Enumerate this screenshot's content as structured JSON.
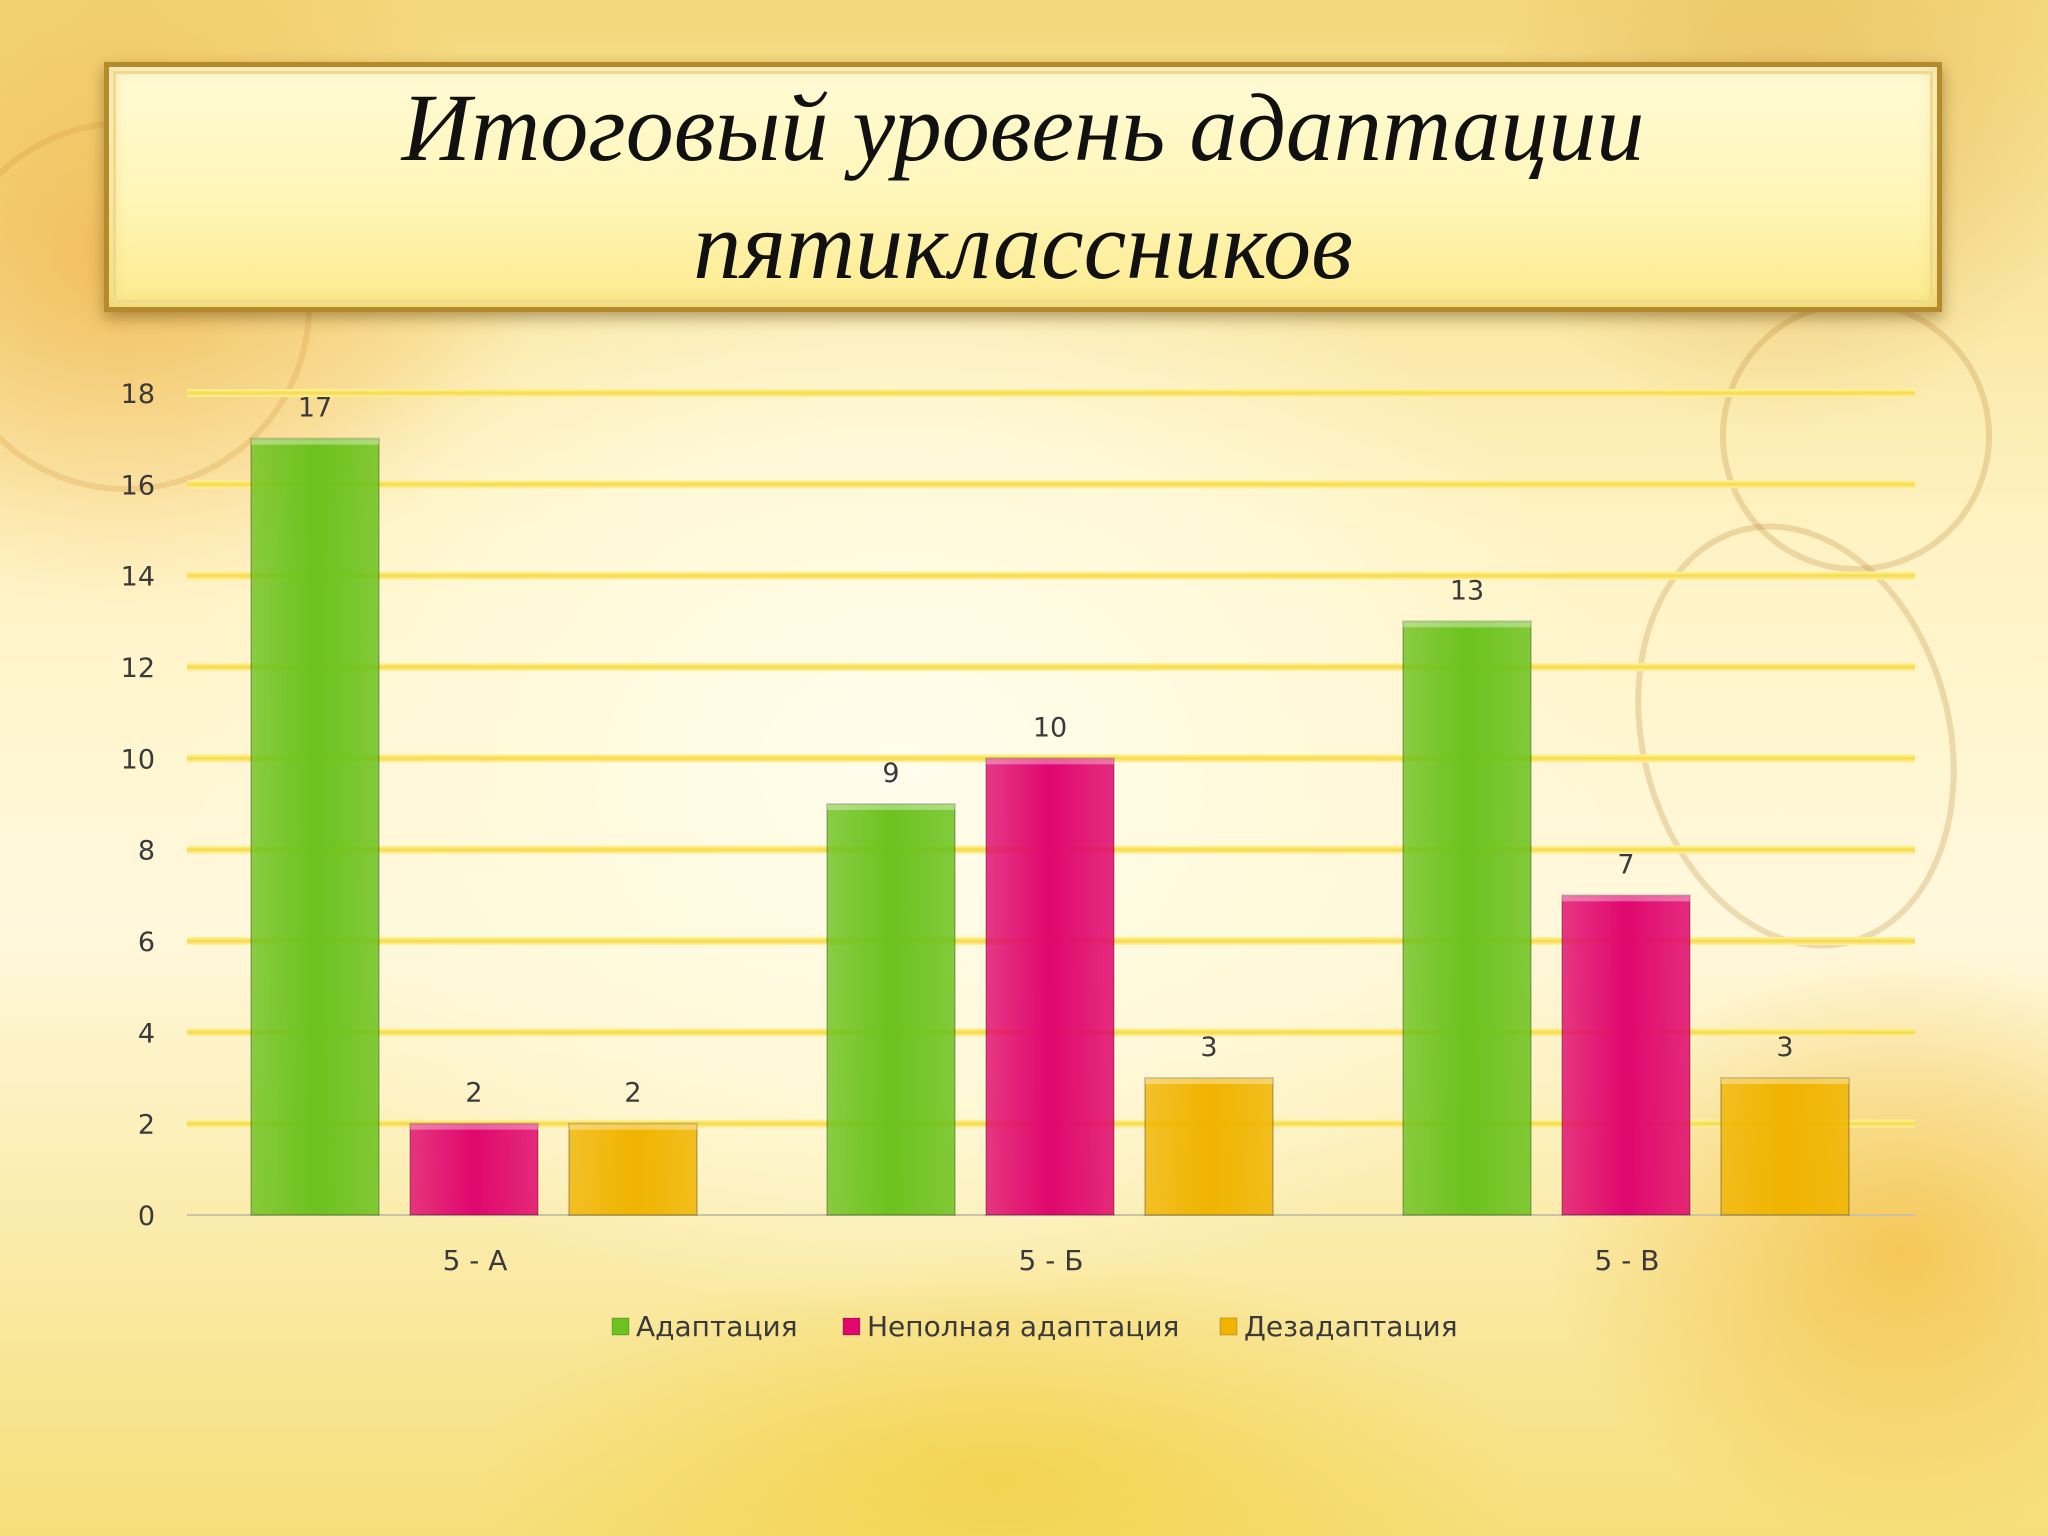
{
  "title": {
    "line1": "Итоговый уровень адаптации",
    "line2": "пятиклассников"
  },
  "chart_data": {
    "type": "bar",
    "categories": [
      "5 - А",
      "5 - Б",
      "5 - В"
    ],
    "series": [
      {
        "name": "Адаптация",
        "values": [
          17,
          9,
          13
        ],
        "color": "#6cc21e"
      },
      {
        "name": "Неполная адаптация",
        "values": [
          2,
          10,
          7
        ],
        "color": "#e0076e"
      },
      {
        "name": "Дезадаптация",
        "values": [
          2,
          3,
          3
        ],
        "color": "#f0b400"
      }
    ],
    "ylim": [
      0,
      18
    ],
    "yticks": [
      0,
      2,
      4,
      6,
      8,
      10,
      12,
      14,
      16,
      18
    ],
    "title": "",
    "xlabel": "",
    "ylabel": "",
    "grid": true,
    "legend": "bottom"
  }
}
